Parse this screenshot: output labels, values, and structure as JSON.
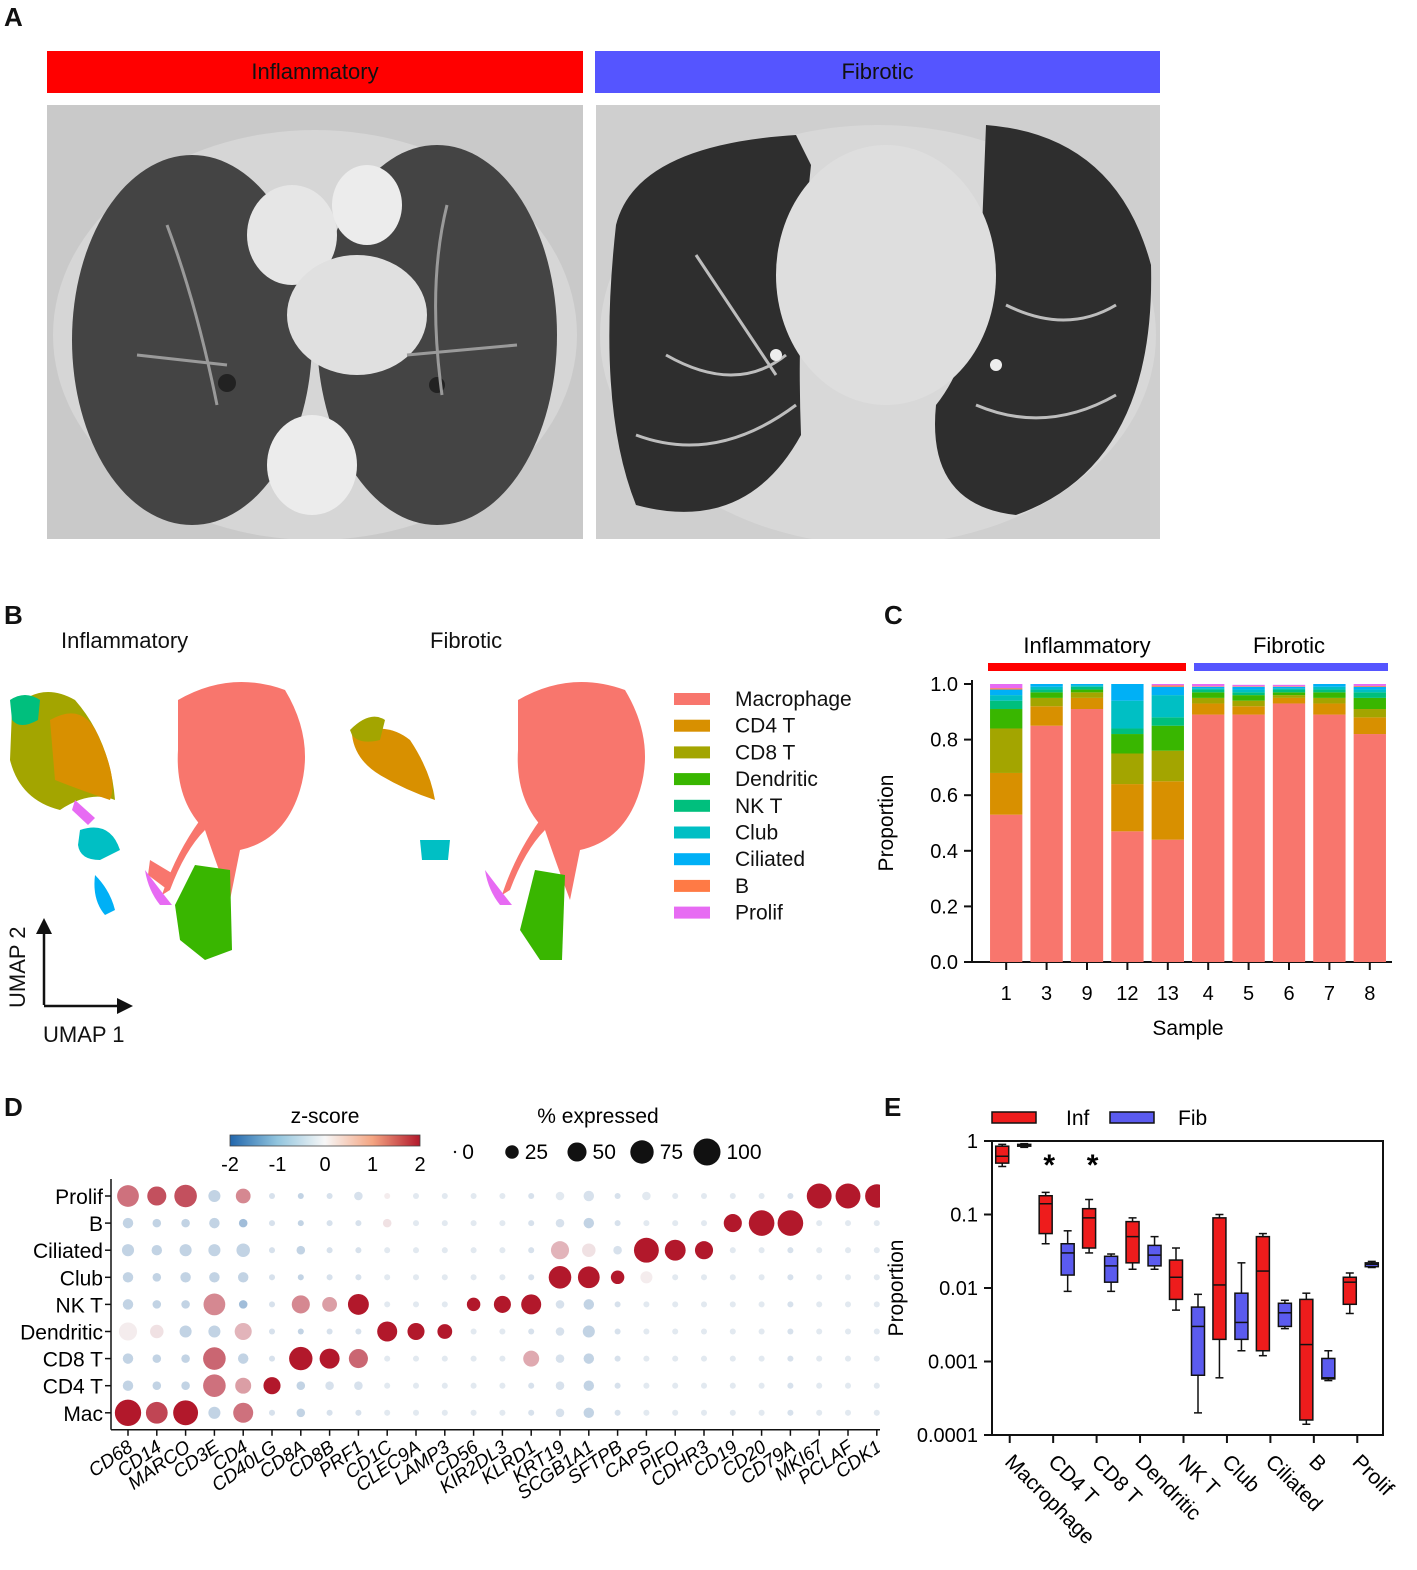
{
  "panels": {
    "A": "A",
    "B": "B",
    "C": "C",
    "D": "D",
    "E": "E"
  },
  "colors": {
    "inflammatory": "#ff0000",
    "fibrotic": "#5555ff",
    "inf_box": "#ee1c1c",
    "fib_box": "#5b5bef"
  },
  "panel_a": {
    "inflammatory_label": "Inflammatory",
    "fibrotic_label": "Fibrotic"
  },
  "panel_b": {
    "inflammatory_title": "Inflammatory",
    "fibrotic_title": "Fibrotic",
    "umap_x": "UMAP 1",
    "umap_y": "UMAP 2",
    "legend": [
      {
        "label": "Macrophage",
        "color": "#f8766d"
      },
      {
        "label": "CD4 T",
        "color": "#d89000"
      },
      {
        "label": "CD8 T",
        "color": "#a3a500"
      },
      {
        "label": "Dendritic",
        "color": "#39b600"
      },
      {
        "label": "NK T",
        "color": "#00bf7d"
      },
      {
        "label": "Club",
        "color": "#00bfc4"
      },
      {
        "label": "Ciliated",
        "color": "#00b0f6"
      },
      {
        "label": "B",
        "color": "#ff7a45"
      },
      {
        "label": "Prolif",
        "color": "#e76bf3"
      }
    ]
  },
  "chart_data": [
    {
      "panel": "C",
      "type": "bar",
      "stacked": true,
      "xlabel": "Sample",
      "ylabel": "Proportion",
      "ylim": [
        0,
        1
      ],
      "yticks": [
        "0.0",
        "0.2",
        "0.4",
        "0.6",
        "0.8",
        "1.0"
      ],
      "group_labels": [
        "Inflammatory",
        "Fibrotic"
      ],
      "categories": [
        "1",
        "3",
        "9",
        "12",
        "13",
        "4",
        "5",
        "6",
        "7",
        "8"
      ],
      "series": [
        {
          "name": "Macrophage",
          "color": "#f8766d",
          "values": [
            0.53,
            0.85,
            0.91,
            0.47,
            0.44,
            0.89,
            0.89,
            0.93,
            0.89,
            0.82
          ]
        },
        {
          "name": "CD4 T",
          "color": "#d89000",
          "values": [
            0.15,
            0.07,
            0.04,
            0.17,
            0.21,
            0.04,
            0.03,
            0.02,
            0.04,
            0.06
          ]
        },
        {
          "name": "CD8 T",
          "color": "#a3a500",
          "values": [
            0.16,
            0.03,
            0.02,
            0.11,
            0.11,
            0.02,
            0.02,
            0.01,
            0.02,
            0.03
          ]
        },
        {
          "name": "Dendritic",
          "color": "#39b600",
          "values": [
            0.07,
            0.02,
            0.01,
            0.07,
            0.09,
            0.02,
            0.02,
            0.01,
            0.02,
            0.04
          ]
        },
        {
          "name": "NK T",
          "color": "#00bf7d",
          "values": [
            0.03,
            0.01,
            0.01,
            0.02,
            0.03,
            0.01,
            0.01,
            0.01,
            0.01,
            0.02
          ]
        },
        {
          "name": "Club",
          "color": "#00bfc4",
          "values": [
            0.02,
            0.01,
            0.005,
            0.1,
            0.08,
            0.005,
            0.01,
            0.005,
            0.01,
            0.01
          ]
        },
        {
          "name": "Ciliated",
          "color": "#00b0f6",
          "values": [
            0.02,
            0.01,
            0.005,
            0.06,
            0.03,
            0.005,
            0.01,
            0.005,
            0.01,
            0.01
          ]
        },
        {
          "name": "B",
          "color": "#ff7a45",
          "values": [
            0.005,
            0.005,
            0.002,
            0.005,
            0.005,
            0.002,
            0.002,
            0.002,
            0.002,
            0.003
          ]
        },
        {
          "name": "Prolif",
          "color": "#e76bf3",
          "values": [
            0.015,
            0.005,
            0.003,
            0.015,
            0.01,
            0.008,
            0.005,
            0.005,
            0.005,
            0.007
          ]
        }
      ]
    },
    {
      "panel": "D",
      "type": "scatter",
      "subtype": "dotplot",
      "colorbar_title": "z-score",
      "colorbar_ticks": [
        "-2",
        "-1",
        "0",
        "1",
        "2"
      ],
      "size_title": "% expressed",
      "size_ticks": [
        "0",
        "25",
        "50",
        "75",
        "100"
      ],
      "size_values": [
        0,
        25,
        50,
        75,
        100
      ],
      "rows": [
        "Prolif",
        "B",
        "Ciliated",
        "Club",
        "NK T",
        "Dendritic",
        "CD8 T",
        "CD4 T",
        "Mac"
      ],
      "genes": [
        "CD68",
        "CD14",
        "MARCO",
        "CD3E",
        "CD4",
        "CD40LG",
        "CD8A",
        "CD8B",
        "PRF1",
        "CD1C",
        "CLEC9A",
        "LAMP3",
        "CD56",
        "KIR2DL3",
        "KLRD1",
        "KRT19",
        "SCGB1A1",
        "SFTPB",
        "CAPS",
        "PIFO",
        "CDHR3",
        "CD19",
        "CD20",
        "CD79A",
        "MKI67",
        "PCLAF",
        "CDK1"
      ],
      "zscore": [
        [
          1.2,
          1.5,
          1.5,
          -0.5,
          1.0,
          -0.3,
          -0.5,
          -0.3,
          -0.3,
          0.1,
          -0.2,
          -0.2,
          -0.2,
          -0.2,
          -0.3,
          -0.2,
          -0.3,
          -0.3,
          -0.2,
          -0.2,
          -0.2,
          -0.2,
          -0.2,
          -0.3,
          2.0,
          2.0,
          2.0
        ],
        [
          -0.5,
          -0.5,
          -0.5,
          -0.5,
          -0.8,
          -0.3,
          -0.5,
          -0.3,
          -0.3,
          0.2,
          -0.2,
          -0.2,
          -0.2,
          -0.2,
          -0.3,
          -0.3,
          -0.5,
          -0.3,
          -0.2,
          -0.2,
          -0.2,
          2.0,
          2.0,
          2.0,
          -0.2,
          -0.2,
          -0.2
        ],
        [
          -0.5,
          -0.5,
          -0.5,
          -0.5,
          -0.5,
          -0.3,
          -0.5,
          -0.3,
          -0.3,
          -0.2,
          -0.2,
          -0.2,
          -0.2,
          -0.2,
          -0.3,
          0.6,
          0.2,
          -0.3,
          2.0,
          2.0,
          2.0,
          -0.2,
          -0.2,
          -0.3,
          -0.2,
          -0.2,
          -0.2
        ],
        [
          -0.5,
          -0.5,
          -0.5,
          -0.5,
          -0.5,
          -0.3,
          -0.5,
          -0.3,
          -0.3,
          -0.2,
          -0.2,
          -0.2,
          -0.2,
          -0.2,
          -0.3,
          2.0,
          2.0,
          2.0,
          0.1,
          -0.2,
          -0.2,
          -0.2,
          -0.2,
          -0.3,
          -0.2,
          -0.2,
          -0.2
        ],
        [
          -0.5,
          -0.5,
          -0.5,
          1.0,
          -0.8,
          -0.3,
          1.0,
          0.8,
          2.0,
          -0.2,
          -0.2,
          -0.2,
          2.0,
          2.0,
          2.0,
          -0.3,
          -0.5,
          -0.3,
          -0.2,
          -0.2,
          -0.2,
          -0.2,
          -0.2,
          -0.3,
          -0.2,
          -0.2,
          -0.2
        ],
        [
          0.1,
          0.2,
          -0.5,
          -0.5,
          0.6,
          -0.3,
          -0.5,
          -0.3,
          -0.3,
          2.0,
          2.0,
          2.0,
          -0.2,
          -0.2,
          -0.3,
          -0.3,
          -0.5,
          -0.3,
          -0.2,
          -0.2,
          -0.2,
          -0.2,
          -0.2,
          -0.3,
          -0.2,
          -0.2,
          -0.2
        ],
        [
          -0.5,
          -0.5,
          -0.5,
          1.3,
          -0.5,
          -0.3,
          2.0,
          2.0,
          1.3,
          -0.2,
          -0.2,
          -0.2,
          -0.2,
          -0.2,
          0.7,
          -0.3,
          -0.5,
          -0.3,
          -0.2,
          -0.2,
          -0.2,
          -0.2,
          -0.2,
          -0.3,
          -0.2,
          -0.2,
          -0.2
        ],
        [
          -0.5,
          -0.5,
          -0.5,
          1.2,
          0.8,
          2.0,
          -0.5,
          -0.3,
          -0.3,
          -0.2,
          -0.2,
          -0.2,
          -0.2,
          -0.2,
          -0.3,
          -0.3,
          -0.5,
          -0.3,
          -0.2,
          -0.2,
          -0.2,
          -0.2,
          -0.2,
          -0.3,
          -0.2,
          -0.2,
          -0.2
        ],
        [
          2.0,
          1.6,
          2.0,
          -0.5,
          1.2,
          -0.3,
          -0.5,
          -0.3,
          -0.3,
          -0.2,
          -0.2,
          -0.2,
          -0.2,
          -0.2,
          -0.3,
          -0.3,
          -0.5,
          -0.3,
          -0.2,
          -0.2,
          -0.2,
          -0.2,
          -0.2,
          -0.3,
          -0.2,
          -0.2,
          -0.2
        ]
      ],
      "pct_expressed": [
        [
          65,
          50,
          70,
          20,
          30,
          5,
          5,
          5,
          10,
          5,
          5,
          5,
          5,
          5,
          5,
          10,
          15,
          5,
          10,
          5,
          5,
          5,
          5,
          5,
          85,
          85,
          75
        ],
        [
          15,
          10,
          10,
          15,
          10,
          5,
          5,
          5,
          5,
          10,
          5,
          5,
          5,
          5,
          5,
          10,
          15,
          5,
          5,
          5,
          5,
          45,
          90,
          90,
          5,
          5,
          5
        ],
        [
          20,
          15,
          20,
          20,
          25,
          5,
          10,
          5,
          5,
          5,
          5,
          5,
          5,
          5,
          5,
          45,
          25,
          10,
          85,
          60,
          45,
          5,
          5,
          5,
          5,
          5,
          5
        ],
        [
          15,
          10,
          15,
          15,
          15,
          5,
          5,
          5,
          5,
          5,
          5,
          5,
          5,
          5,
          5,
          70,
          65,
          25,
          20,
          5,
          5,
          5,
          5,
          5,
          5,
          5,
          5
        ],
        [
          15,
          10,
          10,
          65,
          10,
          5,
          45,
          30,
          60,
          5,
          5,
          5,
          25,
          40,
          55,
          10,
          15,
          5,
          5,
          5,
          5,
          5,
          5,
          5,
          5,
          5,
          5
        ],
        [
          45,
          25,
          20,
          20,
          40,
          5,
          5,
          5,
          5,
          55,
          40,
          30,
          5,
          5,
          5,
          10,
          20,
          5,
          5,
          5,
          5,
          5,
          5,
          5,
          5,
          5,
          5
        ],
        [
          15,
          10,
          10,
          70,
          15,
          5,
          75,
          55,
          50,
          5,
          5,
          5,
          5,
          5,
          35,
          10,
          15,
          5,
          5,
          5,
          5,
          5,
          5,
          5,
          5,
          5,
          5
        ],
        [
          15,
          10,
          10,
          70,
          35,
          40,
          10,
          10,
          10,
          5,
          5,
          5,
          5,
          5,
          5,
          10,
          15,
          5,
          5,
          5,
          5,
          5,
          5,
          5,
          5,
          5,
          5
        ],
        [
          95,
          65,
          85,
          20,
          55,
          5,
          10,
          5,
          5,
          5,
          5,
          5,
          5,
          5,
          5,
          10,
          15,
          5,
          5,
          5,
          5,
          5,
          5,
          5,
          5,
          5,
          5
        ]
      ]
    },
    {
      "panel": "E",
      "type": "box",
      "ylabel": "Proportion",
      "yscale": "log",
      "ylim": [
        0.0001,
        1
      ],
      "yticks": [
        "1",
        "0.1",
        "0.01",
        "0.001",
        "0.0001"
      ],
      "ytick_values": [
        1,
        0.1,
        0.01,
        0.001,
        0.0001
      ],
      "legend": [
        "Inf",
        "Fib"
      ],
      "categories": [
        "Macrophage",
        "CD4 T",
        "CD8 T",
        "Dendritic",
        "NK T",
        "Club",
        "Ciliated",
        "B",
        "Prolif"
      ],
      "significance": [
        "",
        "*",
        "*",
        "",
        "",
        "",
        "",
        "",
        ""
      ],
      "series": [
        {
          "name": "Inf",
          "color": "#ee1c1c",
          "boxes": [
            {
              "min": 0.45,
              "q1": 0.5,
              "median": 0.62,
              "q3": 0.85,
              "max": 0.9
            },
            {
              "min": 0.04,
              "q1": 0.055,
              "median": 0.14,
              "q3": 0.18,
              "max": 0.2
            },
            {
              "min": 0.03,
              "q1": 0.035,
              "median": 0.09,
              "q3": 0.12,
              "max": 0.16
            },
            {
              "min": 0.018,
              "q1": 0.022,
              "median": 0.05,
              "q3": 0.08,
              "max": 0.09
            },
            {
              "min": 0.005,
              "q1": 0.007,
              "median": 0.014,
              "q3": 0.024,
              "max": 0.035
            },
            {
              "min": 0.0006,
              "q1": 0.002,
              "median": 0.011,
              "q3": 0.09,
              "max": 0.1
            },
            {
              "min": 0.0012,
              "q1": 0.0014,
              "median": 0.017,
              "q3": 0.05,
              "max": 0.055
            },
            {
              "min": 0.00014,
              "q1": 0.00016,
              "median": 0.0017,
              "q3": 0.007,
              "max": 0.0085
            },
            {
              "min": 0.0045,
              "q1": 0.006,
              "median": 0.012,
              "q3": 0.014,
              "max": 0.016
            }
          ]
        },
        {
          "name": "Fib",
          "color": "#5b5bef",
          "boxes": [
            {
              "min": 0.82,
              "q1": 0.85,
              "median": 0.88,
              "q3": 0.9,
              "max": 0.92
            },
            {
              "min": 0.009,
              "q1": 0.015,
              "median": 0.03,
              "q3": 0.04,
              "max": 0.06
            },
            {
              "min": 0.009,
              "q1": 0.012,
              "median": 0.02,
              "q3": 0.027,
              "max": 0.029
            },
            {
              "min": 0.018,
              "q1": 0.02,
              "median": 0.028,
              "q3": 0.038,
              "max": 0.05
            },
            {
              "min": 0.0002,
              "q1": 0.00065,
              "median": 0.003,
              "q3": 0.0055,
              "max": 0.0082
            },
            {
              "min": 0.0014,
              "q1": 0.002,
              "median": 0.0034,
              "q3": 0.0085,
              "max": 0.022
            },
            {
              "min": 0.0028,
              "q1": 0.003,
              "median": 0.0046,
              "q3": 0.0062,
              "max": 0.0068
            },
            {
              "min": 0.00055,
              "q1": 0.00058,
              "median": 0.0006,
              "q3": 0.0011,
              "max": 0.0014
            },
            {
              "min": 0.019,
              "q1": 0.0195,
              "median": 0.021,
              "q3": 0.022,
              "max": 0.023
            }
          ]
        }
      ]
    }
  ]
}
